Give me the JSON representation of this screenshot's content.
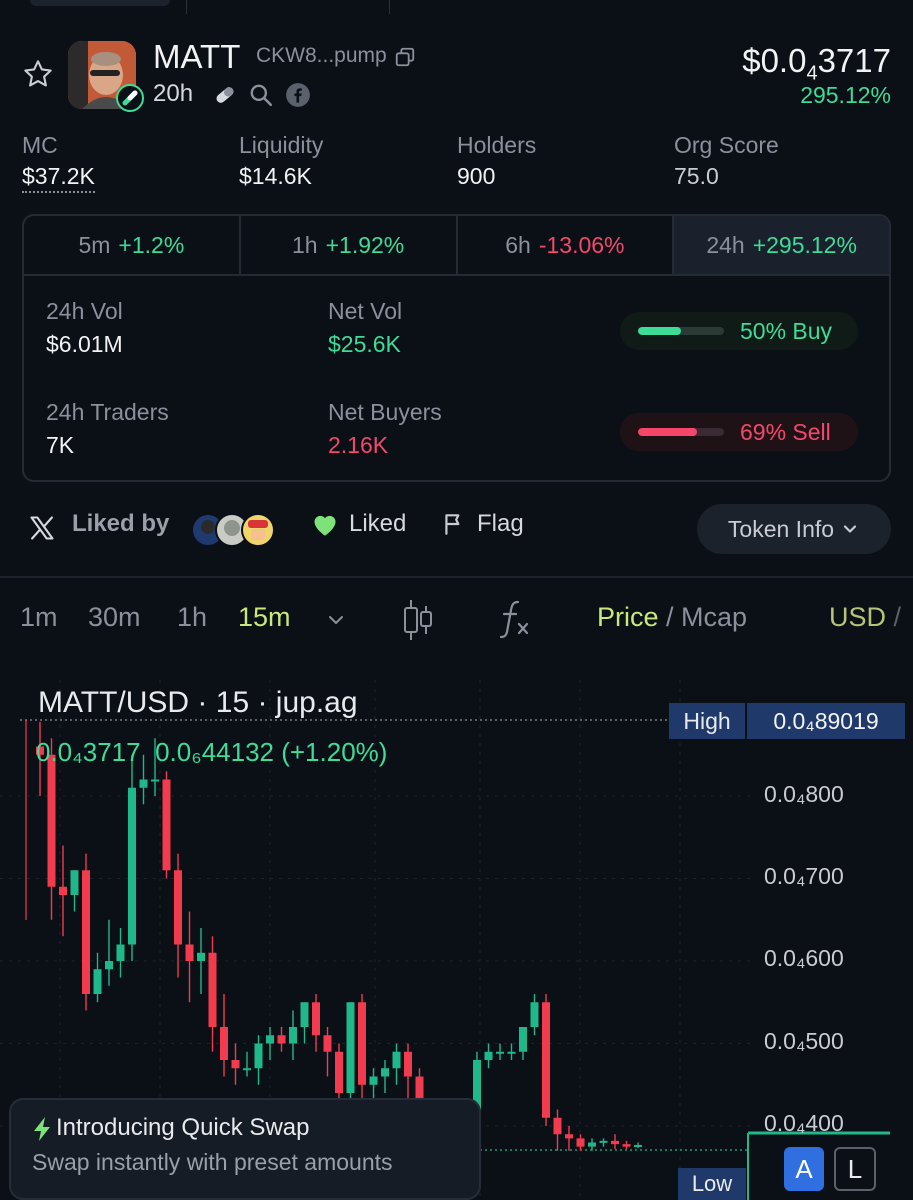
{
  "token": {
    "name": "MATT",
    "address_short": "CKW8...pump",
    "age": "20h",
    "price_prefix": "$0.0",
    "price_zero_count": "4",
    "price_digits": "3717",
    "price_change": "295.12%"
  },
  "stats": [
    {
      "label": "MC",
      "value": "$37.2K"
    },
    {
      "label": "Liquidity",
      "value": "$14.6K"
    },
    {
      "label": "Holders",
      "value": "900"
    },
    {
      "label": "Org Score",
      "value": "75.0"
    }
  ],
  "timeframes": [
    {
      "label": "5m",
      "value": "+1.2%",
      "trend": "up"
    },
    {
      "label": "1h",
      "value": "+1.92%",
      "trend": "up"
    },
    {
      "label": "6h",
      "value": "-13.06%",
      "trend": "down"
    },
    {
      "label": "24h",
      "value": "+295.12%",
      "trend": "up"
    }
  ],
  "volume": {
    "vol_label": "24h Vol",
    "vol_value": "$6.01M",
    "netvol_label": "Net Vol",
    "netvol_value": "$25.6K",
    "traders_label": "24h Traders",
    "traders_value": "7K",
    "netbuyers_label": "Net Buyers",
    "netbuyers_value": "2.16K",
    "buy_label": "50% Buy",
    "buy_fraction": 0.5,
    "sell_label": "69% Sell",
    "sell_fraction": 0.69
  },
  "social": {
    "liked_by_label": "Liked by",
    "liked_label": "Liked",
    "flag_label": "Flag",
    "token_info_label": "Token Info"
  },
  "toolbar": {
    "intervals": [
      "1m",
      "30m",
      "1h",
      "15m"
    ],
    "active_interval": "15m",
    "price_label": "Price",
    "separator": " / ",
    "mcap_label": "Mcap",
    "currency_label": "USD",
    "currency_sep": "/"
  },
  "chart": {
    "title": "MATT/USD · 15 · jup.ag",
    "ohlc_open": "0.0₄3717",
    "ohlc_change": "0.0₆44132 (+1.20%)",
    "high_label": "High",
    "high_value": "0.0₄89019",
    "low_label": "Low",
    "axis_labels": [
      "0.0₄800",
      "0.0₄700",
      "0.0₄600",
      "0.0₄500",
      "0.0₄400"
    ],
    "btn_auto": "A",
    "btn_log": "L",
    "colors": {
      "up": "#1fb88a",
      "down": "#f23b4f"
    }
  },
  "chart_data": {
    "type": "candlestick",
    "title": "MATT/USD · 15 · jup.ag",
    "y_unit": "USD (×1e-4)",
    "ylim": [
      0.37,
      0.92
    ],
    "high": 0.89019,
    "candles": [
      {
        "o": 0.86,
        "h": 0.89,
        "c": 0.85,
        "l": 0.8
      },
      {
        "o": 0.85,
        "h": 0.87,
        "c": 0.69,
        "l": 0.65
      },
      {
        "o": 0.69,
        "h": 0.74,
        "c": 0.68,
        "l": 0.63
      },
      {
        "o": 0.68,
        "h": 0.71,
        "c": 0.71,
        "l": 0.66
      },
      {
        "o": 0.71,
        "h": 0.73,
        "c": 0.56,
        "l": 0.54
      },
      {
        "o": 0.56,
        "h": 0.61,
        "c": 0.59,
        "l": 0.55
      },
      {
        "o": 0.59,
        "h": 0.65,
        "c": 0.6,
        "l": 0.57
      },
      {
        "o": 0.6,
        "h": 0.64,
        "c": 0.62,
        "l": 0.58
      },
      {
        "o": 0.62,
        "h": 0.85,
        "c": 0.81,
        "l": 0.6
      },
      {
        "o": 0.81,
        "h": 0.85,
        "c": 0.82,
        "l": 0.79
      },
      {
        "o": 0.82,
        "h": 0.87,
        "c": 0.82,
        "l": 0.8
      },
      {
        "o": 0.82,
        "h": 0.83,
        "c": 0.71,
        "l": 0.7
      },
      {
        "o": 0.71,
        "h": 0.73,
        "c": 0.62,
        "l": 0.58
      },
      {
        "o": 0.62,
        "h": 0.66,
        "c": 0.6,
        "l": 0.55
      },
      {
        "o": 0.6,
        "h": 0.64,
        "c": 0.61,
        "l": 0.56
      },
      {
        "o": 0.61,
        "h": 0.63,
        "c": 0.52,
        "l": 0.49
      },
      {
        "o": 0.52,
        "h": 0.56,
        "c": 0.48,
        "l": 0.46
      },
      {
        "o": 0.48,
        "h": 0.5,
        "c": 0.47,
        "l": 0.45
      },
      {
        "o": 0.47,
        "h": 0.49,
        "c": 0.47,
        "l": 0.46
      },
      {
        "o": 0.47,
        "h": 0.51,
        "c": 0.5,
        "l": 0.45
      },
      {
        "o": 0.5,
        "h": 0.52,
        "c": 0.51,
        "l": 0.48
      },
      {
        "o": 0.51,
        "h": 0.52,
        "c": 0.5,
        "l": 0.49
      },
      {
        "o": 0.5,
        "h": 0.54,
        "c": 0.52,
        "l": 0.48
      },
      {
        "o": 0.52,
        "h": 0.55,
        "c": 0.55,
        "l": 0.5
      },
      {
        "o": 0.55,
        "h": 0.56,
        "c": 0.51,
        "l": 0.49
      },
      {
        "o": 0.51,
        "h": 0.52,
        "c": 0.49,
        "l": 0.46
      },
      {
        "o": 0.49,
        "h": 0.5,
        "c": 0.44,
        "l": 0.4
      },
      {
        "o": 0.44,
        "h": 0.55,
        "c": 0.55,
        "l": 0.42
      },
      {
        "o": 0.55,
        "h": 0.56,
        "c": 0.45,
        "l": 0.41
      },
      {
        "o": 0.45,
        "h": 0.47,
        "c": 0.46,
        "l": 0.43
      },
      {
        "o": 0.46,
        "h": 0.48,
        "c": 0.47,
        "l": 0.44
      },
      {
        "o": 0.47,
        "h": 0.5,
        "c": 0.49,
        "l": 0.45
      },
      {
        "o": 0.49,
        "h": 0.5,
        "c": 0.46,
        "l": 0.42
      },
      {
        "o": 0.46,
        "h": 0.47,
        "c": 0.41,
        "l": 0.38
      },
      {
        "o": 0.41,
        "h": 0.43,
        "c": 0.4,
        "l": 0.37
      },
      {
        "o": 0.4,
        "h": 0.42,
        "c": 0.39,
        "l": 0.37
      },
      {
        "o": 0.39,
        "h": 0.42,
        "c": 0.4,
        "l": 0.37
      },
      {
        "o": 0.4,
        "h": 0.43,
        "c": 0.42,
        "l": 0.39
      },
      {
        "o": 0.42,
        "h": 0.49,
        "c": 0.48,
        "l": 0.41
      },
      {
        "o": 0.48,
        "h": 0.5,
        "c": 0.49,
        "l": 0.47
      },
      {
        "o": 0.49,
        "h": 0.5,
        "c": 0.49,
        "l": 0.48
      },
      {
        "o": 0.49,
        "h": 0.5,
        "c": 0.49,
        "l": 0.48
      },
      {
        "o": 0.49,
        "h": 0.52,
        "c": 0.52,
        "l": 0.48
      },
      {
        "o": 0.52,
        "h": 0.56,
        "c": 0.55,
        "l": 0.51
      },
      {
        "o": 0.55,
        "h": 0.56,
        "c": 0.41,
        "l": 0.4
      },
      {
        "o": 0.41,
        "h": 0.42,
        "c": 0.39,
        "l": 0.37
      },
      {
        "o": 0.39,
        "h": 0.4,
        "c": 0.385,
        "l": 0.37
      },
      {
        "o": 0.385,
        "h": 0.39,
        "c": 0.375,
        "l": 0.37
      },
      {
        "o": 0.375,
        "h": 0.385,
        "c": 0.38,
        "l": 0.37
      },
      {
        "o": 0.38,
        "h": 0.385,
        "c": 0.382,
        "l": 0.375
      },
      {
        "o": 0.382,
        "h": 0.39,
        "c": 0.378,
        "l": 0.372
      },
      {
        "o": 0.378,
        "h": 0.382,
        "c": 0.375,
        "l": 0.372
      },
      {
        "o": 0.375,
        "h": 0.38,
        "c": 0.377,
        "l": 0.373
      }
    ]
  },
  "toast": {
    "title": "Introducing Quick Swap",
    "subtitle": "Swap instantly with preset amounts"
  }
}
